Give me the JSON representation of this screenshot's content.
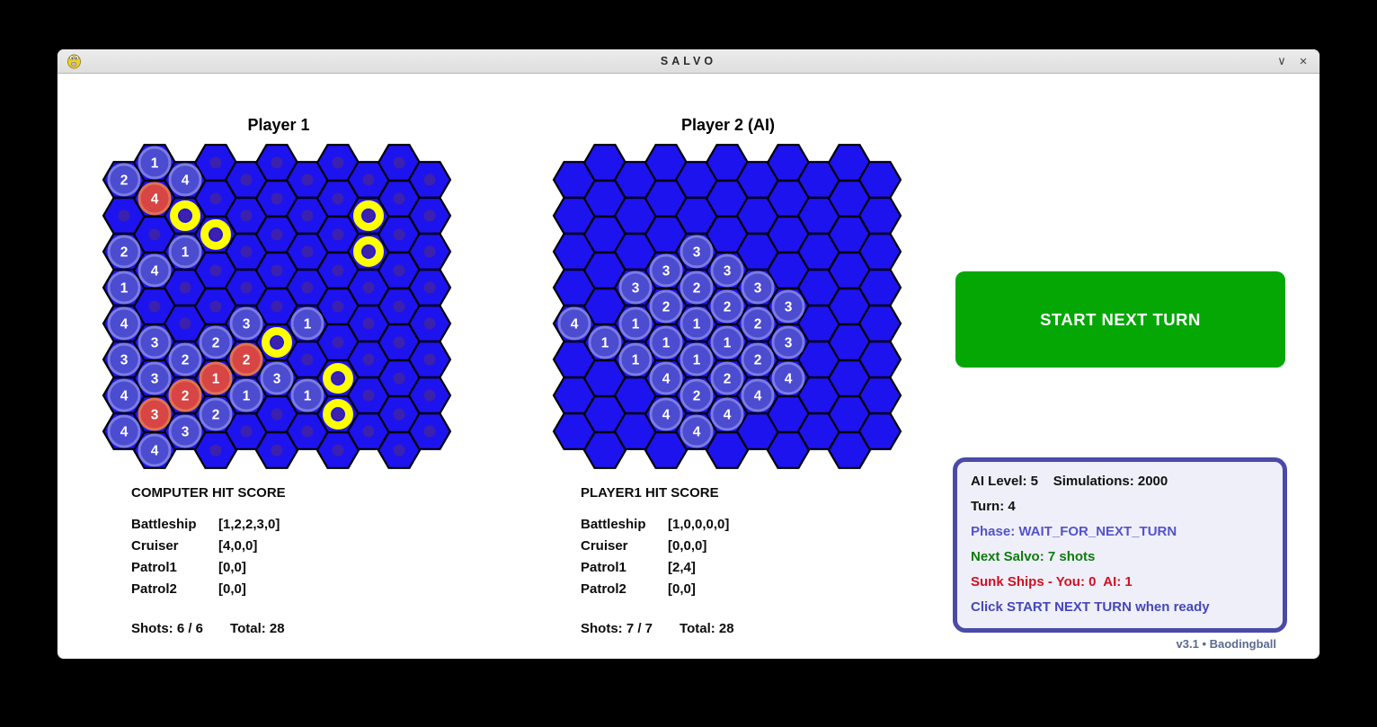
{
  "window": {
    "title": "SALVO",
    "minimize_glyph": "∨",
    "close_glyph": "×"
  },
  "colors": {
    "background": "#000000",
    "window_bg": "#ffffff",
    "titlebar_bg": "#e4e4e4",
    "hex_fill": "#1d13ee",
    "hex_border": "#000000",
    "water_dot": "#3b21ad",
    "ship_fill": "#4b4cd0",
    "ship_rim": "#7b7ce2",
    "hit_fill": "#d84545",
    "hit_rim": "#e0724f",
    "miss_ring": "#ffff00",
    "cell_text": "#ffffff",
    "button_bg": "#04a704",
    "button_text": "#ffffff",
    "panel_border": "#4a4aa8",
    "panel_bg": "#efeff9",
    "version_text": "#5c6a90"
  },
  "boards": [
    {
      "id": "player1",
      "title": "Player 1",
      "water_dots": true,
      "cells": [
        {
          "c": 0,
          "r": 0,
          "type": "ship",
          "v": "2"
        },
        {
          "c": 1,
          "r": 0,
          "type": "ship",
          "v": "1"
        },
        {
          "c": 2,
          "r": 0,
          "type": "ship",
          "v": "4"
        },
        {
          "c": 1,
          "r": 1,
          "type": "hit",
          "v": "4"
        },
        {
          "c": 2,
          "r": 1,
          "type": "miss"
        },
        {
          "c": 8,
          "r": 1,
          "type": "miss"
        },
        {
          "c": 0,
          "r": 2,
          "type": "ship",
          "v": "2"
        },
        {
          "c": 2,
          "r": 2,
          "type": "ship",
          "v": "1"
        },
        {
          "c": 3,
          "r": 2,
          "type": "miss"
        },
        {
          "c": 8,
          "r": 2,
          "type": "miss"
        },
        {
          "c": 0,
          "r": 3,
          "type": "ship",
          "v": "1"
        },
        {
          "c": 1,
          "r": 3,
          "type": "ship",
          "v": "4"
        },
        {
          "c": 0,
          "r": 4,
          "type": "ship",
          "v": "4"
        },
        {
          "c": 4,
          "r": 4,
          "type": "ship",
          "v": "3"
        },
        {
          "c": 6,
          "r": 4,
          "type": "ship",
          "v": "1"
        },
        {
          "c": 0,
          "r": 5,
          "type": "ship",
          "v": "3"
        },
        {
          "c": 1,
          "r": 5,
          "type": "ship",
          "v": "3"
        },
        {
          "c": 2,
          "r": 5,
          "type": "ship",
          "v": "2"
        },
        {
          "c": 3,
          "r": 5,
          "type": "ship",
          "v": "2"
        },
        {
          "c": 4,
          "r": 5,
          "type": "hit",
          "v": "2"
        },
        {
          "c": 5,
          "r": 5,
          "type": "miss"
        },
        {
          "c": 0,
          "r": 6,
          "type": "ship",
          "v": "4"
        },
        {
          "c": 1,
          "r": 6,
          "type": "ship",
          "v": "3"
        },
        {
          "c": 2,
          "r": 6,
          "type": "hit",
          "v": "2"
        },
        {
          "c": 3,
          "r": 6,
          "type": "hit",
          "v": "1"
        },
        {
          "c": 4,
          "r": 6,
          "type": "ship",
          "v": "1"
        },
        {
          "c": 5,
          "r": 6,
          "type": "ship",
          "v": "3"
        },
        {
          "c": 6,
          "r": 6,
          "type": "ship",
          "v": "1"
        },
        {
          "c": 7,
          "r": 6,
          "type": "miss"
        },
        {
          "c": 0,
          "r": 7,
          "type": "ship",
          "v": "4"
        },
        {
          "c": 1,
          "r": 7,
          "type": "hit",
          "v": "3"
        },
        {
          "c": 2,
          "r": 7,
          "type": "ship",
          "v": "3"
        },
        {
          "c": 3,
          "r": 7,
          "type": "ship",
          "v": "2"
        },
        {
          "c": 7,
          "r": 7,
          "type": "miss"
        },
        {
          "c": 1,
          "r": 8,
          "type": "ship",
          "v": "4"
        }
      ]
    },
    {
      "id": "player2",
      "title": "Player 2 (AI)",
      "water_dots": false,
      "cells": [
        {
          "c": 4,
          "r": 2,
          "type": "ship",
          "v": "3"
        },
        {
          "c": 2,
          "r": 3,
          "type": "ship",
          "v": "3"
        },
        {
          "c": 3,
          "r": 3,
          "type": "ship",
          "v": "3"
        },
        {
          "c": 4,
          "r": 3,
          "type": "ship",
          "v": "2"
        },
        {
          "c": 5,
          "r": 3,
          "type": "ship",
          "v": "3"
        },
        {
          "c": 6,
          "r": 3,
          "type": "ship",
          "v": "3"
        },
        {
          "c": 0,
          "r": 4,
          "type": "ship",
          "v": "4"
        },
        {
          "c": 2,
          "r": 4,
          "type": "ship",
          "v": "1"
        },
        {
          "c": 3,
          "r": 4,
          "type": "ship",
          "v": "2"
        },
        {
          "c": 4,
          "r": 4,
          "type": "ship",
          "v": "1"
        },
        {
          "c": 5,
          "r": 4,
          "type": "ship",
          "v": "2"
        },
        {
          "c": 6,
          "r": 4,
          "type": "ship",
          "v": "2"
        },
        {
          "c": 7,
          "r": 4,
          "type": "ship",
          "v": "3"
        },
        {
          "c": 1,
          "r": 5,
          "type": "ship",
          "v": "1"
        },
        {
          "c": 2,
          "r": 5,
          "type": "ship",
          "v": "1"
        },
        {
          "c": 3,
          "r": 5,
          "type": "ship",
          "v": "1"
        },
        {
          "c": 4,
          "r": 5,
          "type": "ship",
          "v": "1"
        },
        {
          "c": 5,
          "r": 5,
          "type": "ship",
          "v": "1"
        },
        {
          "c": 6,
          "r": 5,
          "type": "ship",
          "v": "2"
        },
        {
          "c": 7,
          "r": 5,
          "type": "ship",
          "v": "3"
        },
        {
          "c": 3,
          "r": 6,
          "type": "ship",
          "v": "4"
        },
        {
          "c": 4,
          "r": 6,
          "type": "ship",
          "v": "2"
        },
        {
          "c": 5,
          "r": 6,
          "type": "ship",
          "v": "2"
        },
        {
          "c": 6,
          "r": 6,
          "type": "ship",
          "v": "4"
        },
        {
          "c": 7,
          "r": 6,
          "type": "ship",
          "v": "4"
        },
        {
          "c": 3,
          "r": 7,
          "type": "ship",
          "v": "4"
        },
        {
          "c": 4,
          "r": 7,
          "type": "ship",
          "v": "4"
        },
        {
          "c": 5,
          "r": 7,
          "type": "ship",
          "v": "4"
        }
      ]
    }
  ],
  "scores": [
    {
      "title": "COMPUTER HIT SCORE",
      "ships": [
        {
          "name": "Battleship",
          "values": "[1,2,2,3,0]"
        },
        {
          "name": "Cruiser",
          "values": "[4,0,0]"
        },
        {
          "name": "Patrol1",
          "values": "[0,0]"
        },
        {
          "name": "Patrol2",
          "values": "[0,0]"
        }
      ],
      "shots": "Shots: 6 / 6",
      "total": "Total: 28"
    },
    {
      "title": "PLAYER1 HIT SCORE",
      "ships": [
        {
          "name": "Battleship",
          "values": "[1,0,0,0,0]"
        },
        {
          "name": "Cruiser",
          "values": "[0,0,0]"
        },
        {
          "name": "Patrol1",
          "values": "[2,4]"
        },
        {
          "name": "Patrol2",
          "values": "[0,0]"
        }
      ],
      "shots": "Shots: 7 / 7",
      "total": "Total: 28"
    }
  ],
  "action_button": {
    "label": "START NEXT TURN"
  },
  "status_panel": {
    "lines": [
      {
        "text": "AI Level: 5    Simulations: 2000",
        "color": "#111111"
      },
      {
        "text": "Turn: 4",
        "color": "#111111"
      },
      {
        "text": "Phase: WAIT_FOR_NEXT_TURN",
        "color": "#5353cb"
      },
      {
        "text": "Next Salvo: 7 shots",
        "color": "#0e7c0e"
      },
      {
        "text": "Sunk Ships - You: 0  AI: 1",
        "color": "#cf1120"
      },
      {
        "text": "Click START NEXT TURN when ready",
        "color": "#4646bb"
      }
    ]
  },
  "version": "v3.1 • Baodingball"
}
